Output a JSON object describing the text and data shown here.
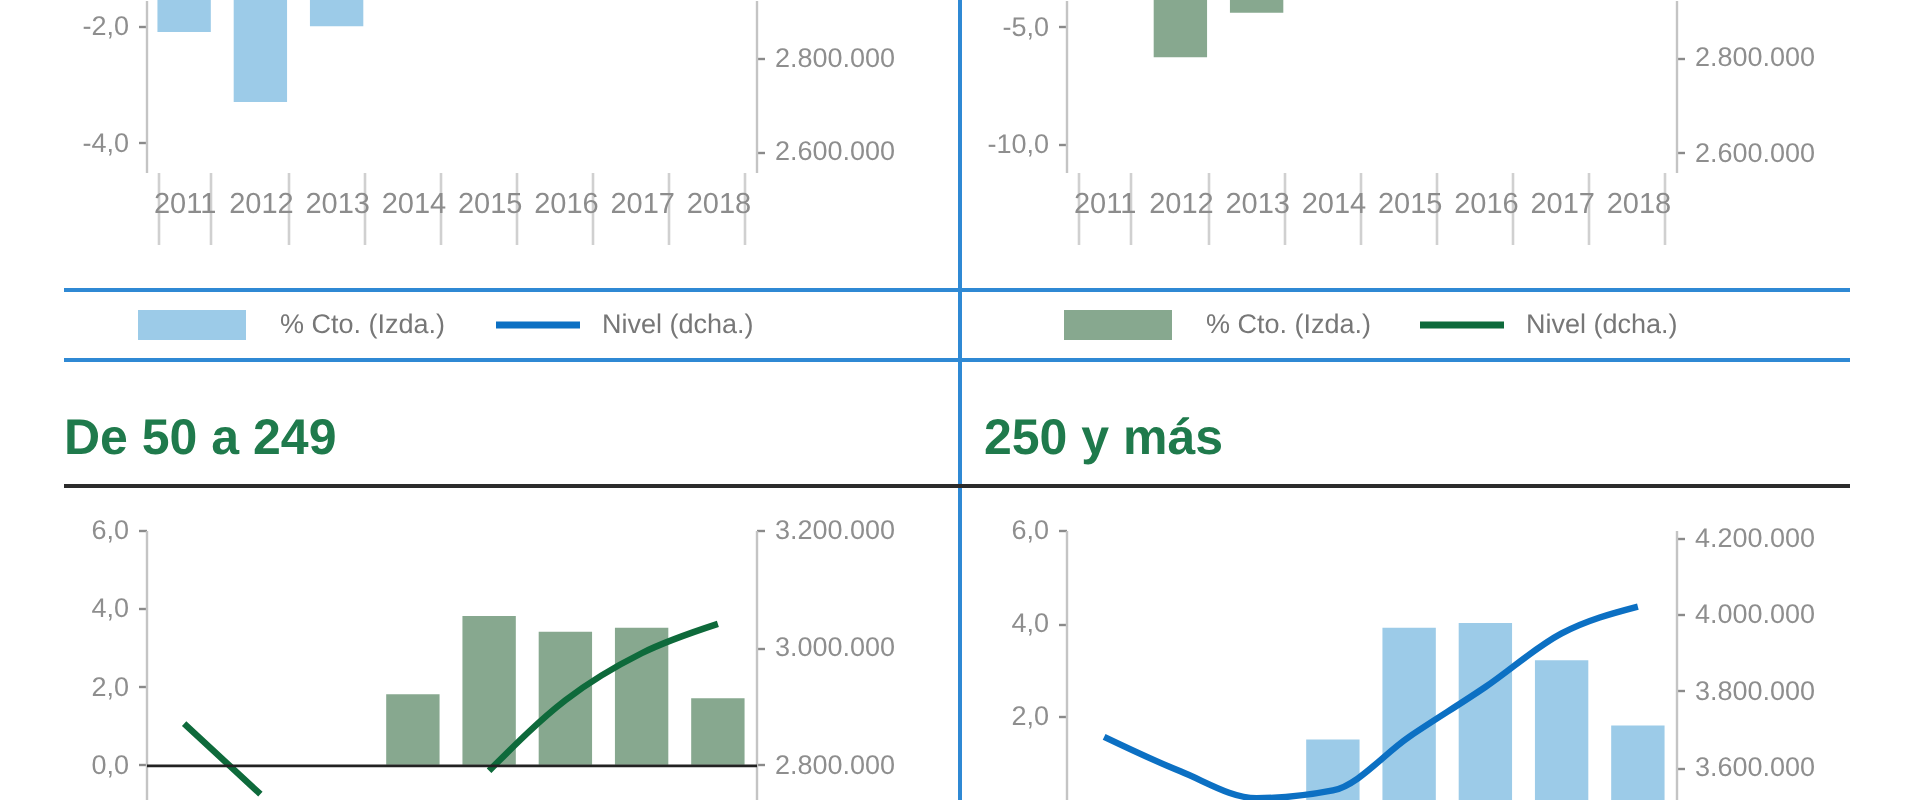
{
  "chart_data": [
    {
      "type": "bar",
      "categories": [
        "2011",
        "2012",
        "2013",
        "2014",
        "2015",
        "2016",
        "2017",
        "2018"
      ],
      "series": [
        {
          "name": "% Cto. (Izda.)",
          "type": "bar",
          "color": "#9ccbe8",
          "values": [
            -2.1,
            -3.3,
            -2.0,
            null,
            null,
            null,
            null,
            null
          ]
        },
        {
          "name": "Nivel (dcha.)",
          "type": "line",
          "axis": "y2",
          "color": "#0c70c3",
          "values": [
            null,
            null,
            null,
            null,
            null,
            null,
            null,
            null
          ]
        }
      ],
      "ylim": [
        -4.5,
        -1.55
      ],
      "yticks": [
        {
          "value": -2,
          "label": "-2,0"
        },
        {
          "value": -4,
          "label": "-4,0"
        }
      ],
      "y2lim": [
        2555000,
        2925000
      ],
      "y2ticks": [
        {
          "value": 2800000,
          "label": "2.800.000"
        },
        {
          "value": 2600000,
          "label": "2.600.000"
        }
      ],
      "legend": "bottom"
    },
    {
      "type": "bar",
      "categories": [
        "2011",
        "2012",
        "2013",
        "2014",
        "2015",
        "2016",
        "2017",
        "2018"
      ],
      "series": [
        {
          "name": "% Cto. (Izda.)",
          "type": "bar",
          "color": "#87a88f",
          "values": [
            null,
            -6.3,
            -4.4,
            null,
            null,
            null,
            null,
            null
          ]
        },
        {
          "name": "Nivel (dcha.)",
          "type": "line",
          "axis": "y2",
          "color": "#0e6a3b",
          "values": [
            null,
            null,
            null,
            null,
            null,
            null,
            null,
            null
          ]
        }
      ],
      "ylim": [
        -11.2,
        -3.85
      ],
      "yticks": [
        {
          "value": -5,
          "label": "-5,0"
        },
        {
          "value": -10,
          "label": "-10,0"
        }
      ],
      "y2lim": [
        2560000,
        2920000
      ],
      "y2ticks": [
        {
          "value": 2800000,
          "label": "2.800.000"
        },
        {
          "value": 2600000,
          "label": "2.600.000"
        }
      ],
      "legend": "bottom"
    },
    {
      "type": "bar",
      "title": "De 50 a 249",
      "categories": [
        null,
        null,
        null,
        null,
        null,
        null,
        null,
        null
      ],
      "series": [
        {
          "type": "bar",
          "color": "#87a88f",
          "values": [
            null,
            null,
            null,
            1.8,
            3.8,
            3.4,
            3.5,
            1.7
          ]
        },
        {
          "type": "line",
          "axis": "y2",
          "color": "#0e6a3b",
          "values": [
            2870000,
            2750000,
            null,
            null,
            2790000,
            2910000,
            2990000,
            3040000
          ]
        }
      ],
      "ylim": [
        -0.9,
        6
      ],
      "yticks": [
        {
          "value": 6,
          "label": "6,0"
        },
        {
          "value": 4,
          "label": "4,0"
        },
        {
          "value": 2,
          "label": "2,0"
        },
        {
          "value": 0,
          "label": "0,0"
        }
      ],
      "y2lim": [
        2740000,
        3200000
      ],
      "y2ticks": [
        {
          "value": 3200000,
          "label": "3.200.000"
        },
        {
          "value": 3000000,
          "label": "3.000.000"
        },
        {
          "value": 2800000,
          "label": "2.800.000"
        }
      ]
    },
    {
      "type": "bar",
      "title": "250 y más",
      "categories": [
        null,
        null,
        null,
        null,
        null,
        null,
        null,
        null
      ],
      "series": [
        {
          "type": "bar",
          "color": "#9ccbe8",
          "values": [
            null,
            null,
            null,
            1.5,
            3.9,
            4.0,
            3.2,
            1.8
          ]
        },
        {
          "type": "line",
          "axis": "y2",
          "color": "#0c70c3",
          "values": [
            3680000,
            3590000,
            3520000,
            3540000,
            3680000,
            3810000,
            3950000,
            4020000
          ]
        }
      ],
      "ylim": [
        0.2,
        6
      ],
      "yticks": [
        {
          "value": 6,
          "label": "6,0"
        },
        {
          "value": 4,
          "label": "4,0"
        },
        {
          "value": 2,
          "label": "2,0"
        }
      ],
      "y2lim": [
        3515000,
        4220000
      ],
      "y2ticks": [
        {
          "value": 4200000,
          "label": "4.200.000"
        },
        {
          "value": 4000000,
          "label": "4.000.000"
        },
        {
          "value": 3800000,
          "label": "3.800.000"
        },
        {
          "value": 3600000,
          "label": "3.600.000"
        }
      ]
    }
  ]
}
